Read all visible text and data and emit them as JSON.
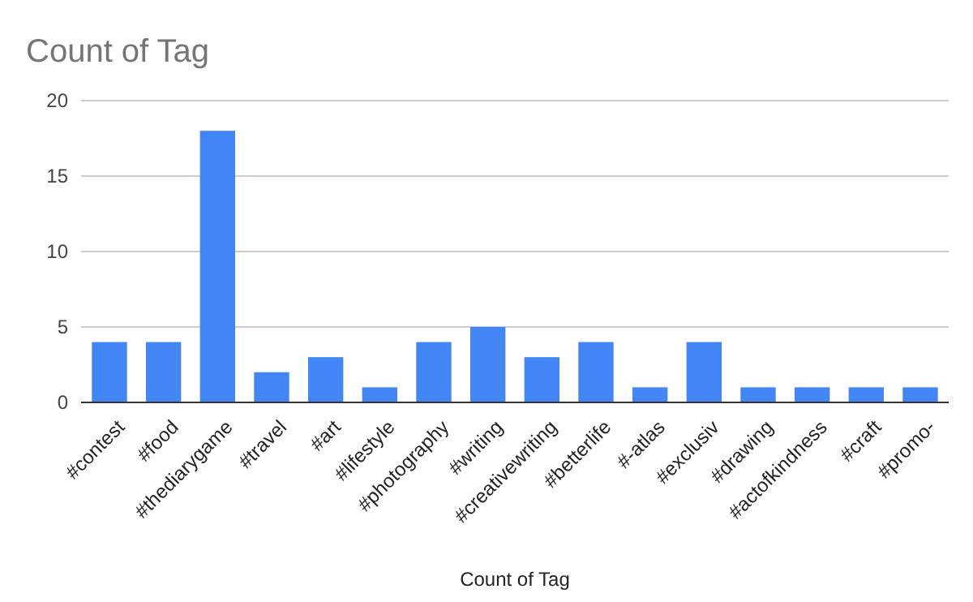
{
  "chart_data": {
    "type": "bar",
    "title": "Count of Tag",
    "xlabel": "Count of Tag",
    "categories": [
      "#contest",
      "#food",
      "#thediarygame",
      "#travel",
      "#art",
      "#lifestyle",
      "#photography",
      "#writing",
      "#creativewriting",
      "#betterlife",
      "#-atlas",
      "#exclusiv",
      "#drawing",
      "#actofkindness",
      "#craft",
      "#promo-"
    ],
    "values": [
      4,
      4,
      18,
      2,
      3,
      1,
      4,
      5,
      3,
      4,
      1,
      4,
      1,
      1,
      1,
      1
    ],
    "color": "#4285f4",
    "ylim": [
      0,
      20
    ],
    "yticks": [
      0,
      5,
      10,
      15,
      20
    ],
    "grid": "y"
  }
}
